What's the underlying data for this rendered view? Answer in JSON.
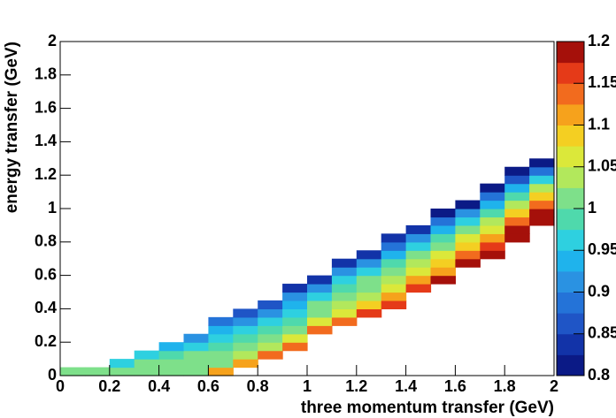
{
  "chart_data": {
    "type": "heatmap",
    "xlabel": "three momentum transfer (GeV)",
    "ylabel": "energy transfer (GeV)",
    "xlim": [
      0,
      2
    ],
    "ylim": [
      0,
      2
    ],
    "xticks": [
      0,
      0.2,
      0.4,
      0.6,
      0.8,
      1,
      1.2,
      1.4,
      1.6,
      1.8,
      2
    ],
    "yticks": [
      0,
      0.2,
      0.4,
      0.6,
      0.8,
      1,
      1.2,
      1.4,
      1.6,
      1.8,
      2
    ],
    "zlim": [
      0.8,
      1.2
    ],
    "zticks": [
      0.8,
      0.85,
      0.9,
      0.95,
      1,
      1.05,
      1.1,
      1.15,
      1.2
    ],
    "palette": [
      "#0b1a86",
      "#1233a8",
      "#1f55c6",
      "#2473d8",
      "#2a92e2",
      "#1fb3ec",
      "#2ed0e0",
      "#4fd9ac",
      "#7ee08a",
      "#b2e85c",
      "#dbe83a",
      "#f4cf22",
      "#f6a21c",
      "#f26b1e",
      "#e53a18",
      "#a5100a"
    ],
    "x_bins": [
      0,
      0.1,
      0.2,
      0.3,
      0.4,
      0.5,
      0.6,
      0.7,
      0.8,
      0.9,
      1,
      1.1,
      1.2,
      1.3,
      1.4,
      1.5,
      1.6,
      1.7,
      1.8,
      1.9,
      2
    ],
    "y_bins": [
      0,
      0.05,
      0.1,
      0.15,
      0.2,
      0.25,
      0.3,
      0.35,
      0.4,
      0.45,
      0.5,
      0.55,
      0.6,
      0.65,
      0.7,
      0.75,
      0.8,
      0.85,
      0.9,
      0.95,
      1,
      1.05,
      1.1,
      1.15,
      1.2,
      1.25,
      1.3
    ],
    "z": [
      [
        1.0,
        1.0,
        1.0,
        1.0,
        1.01,
        1.02,
        1.1,
        null,
        null,
        null,
        null,
        null,
        null,
        null,
        null,
        null,
        null,
        null,
        null,
        null
      ],
      [
        null,
        null,
        0.97,
        1.0,
        1.0,
        1.0,
        1.02,
        1.12,
        null,
        null,
        null,
        null,
        null,
        null,
        null,
        null,
        null,
        null,
        null,
        null
      ],
      [
        null,
        null,
        null,
        0.96,
        0.98,
        1.0,
        1.0,
        1.03,
        1.13,
        null,
        null,
        null,
        null,
        null,
        null,
        null,
        null,
        null,
        null,
        null
      ],
      [
        null,
        null,
        null,
        null,
        0.93,
        0.97,
        0.99,
        1.0,
        1.03,
        1.14,
        null,
        null,
        null,
        null,
        null,
        null,
        null,
        null,
        null,
        null
      ],
      [
        null,
        null,
        null,
        null,
        null,
        0.92,
        0.97,
        0.98,
        1.0,
        1.05,
        null,
        null,
        null,
        null,
        null,
        null,
        null,
        null,
        null,
        null
      ],
      [
        null,
        null,
        null,
        null,
        null,
        null,
        0.93,
        0.96,
        0.98,
        1.01,
        1.15,
        null,
        null,
        null,
        null,
        null,
        null,
        null,
        null,
        null
      ],
      [
        null,
        null,
        null,
        null,
        null,
        null,
        0.88,
        0.92,
        0.96,
        0.99,
        1.05,
        1.15,
        null,
        null,
        null,
        null,
        null,
        null,
        null,
        null
      ],
      [
        null,
        null,
        null,
        null,
        null,
        null,
        null,
        0.87,
        0.91,
        0.97,
        1.02,
        1.07,
        1.16,
        null,
        null,
        null,
        null,
        null,
        null,
        null
      ],
      [
        null,
        null,
        null,
        null,
        null,
        null,
        null,
        null,
        0.86,
        0.95,
        1.0,
        1.03,
        1.08,
        1.17,
        null,
        null,
        null,
        null,
        null,
        null
      ],
      [
        null,
        null,
        null,
        null,
        null,
        null,
        null,
        null,
        null,
        0.9,
        0.97,
        1.01,
        1.04,
        1.1,
        null,
        null,
        null,
        null,
        null,
        null
      ],
      [
        null,
        null,
        null,
        null,
        null,
        null,
        null,
        null,
        null,
        0.85,
        0.92,
        0.99,
        1.02,
        1.05,
        1.17,
        null,
        null,
        null,
        null,
        null
      ],
      [
        null,
        null,
        null,
        null,
        null,
        null,
        null,
        null,
        null,
        null,
        0.85,
        0.96,
        1.0,
        1.03,
        1.1,
        1.18,
        null,
        null,
        null,
        null
      ],
      [
        null,
        null,
        null,
        null,
        null,
        null,
        null,
        null,
        null,
        null,
        null,
        0.91,
        0.97,
        1.01,
        1.06,
        1.12,
        null,
        null,
        null,
        null
      ],
      [
        null,
        null,
        null,
        null,
        null,
        null,
        null,
        null,
        null,
        null,
        null,
        0.84,
        0.91,
        0.98,
        1.03,
        1.08,
        1.19,
        null,
        null,
        null
      ],
      [
        null,
        null,
        null,
        null,
        null,
        null,
        null,
        null,
        null,
        null,
        null,
        null,
        0.84,
        0.95,
        1.0,
        1.05,
        1.14,
        1.2,
        null,
        null
      ],
      [
        null,
        null,
        null,
        null,
        null,
        null,
        null,
        null,
        null,
        null,
        null,
        null,
        null,
        0.89,
        0.96,
        1.02,
        1.09,
        1.16,
        null,
        null
      ],
      [
        null,
        null,
        null,
        null,
        null,
        null,
        null,
        null,
        null,
        null,
        null,
        null,
        null,
        0.83,
        0.9,
        0.99,
        1.05,
        1.11,
        1.2,
        null
      ],
      [
        null,
        null,
        null,
        null,
        null,
        null,
        null,
        null,
        null,
        null,
        null,
        null,
        null,
        null,
        0.83,
        0.95,
        1.01,
        1.07,
        1.18,
        null
      ],
      [
        null,
        null,
        null,
        null,
        null,
        null,
        null,
        null,
        null,
        null,
        null,
        null,
        null,
        null,
        null,
        0.89,
        0.96,
        1.03,
        1.13,
        1.2
      ],
      [
        null,
        null,
        null,
        null,
        null,
        null,
        null,
        null,
        null,
        null,
        null,
        null,
        null,
        null,
        null,
        0.82,
        0.9,
        0.99,
        1.08,
        1.19
      ],
      [
        null,
        null,
        null,
        null,
        null,
        null,
        null,
        null,
        null,
        null,
        null,
        null,
        null,
        null,
        null,
        null,
        0.82,
        0.95,
        1.03,
        1.15
      ],
      [
        null,
        null,
        null,
        null,
        null,
        null,
        null,
        null,
        null,
        null,
        null,
        null,
        null,
        null,
        null,
        null,
        null,
        0.88,
        0.98,
        1.09
      ],
      [
        null,
        null,
        null,
        null,
        null,
        null,
        null,
        null,
        null,
        null,
        null,
        null,
        null,
        null,
        null,
        null,
        null,
        0.81,
        0.93,
        1.03
      ],
      [
        null,
        null,
        null,
        null,
        null,
        null,
        null,
        null,
        null,
        null,
        null,
        null,
        null,
        null,
        null,
        null,
        null,
        null,
        0.87,
        0.96
      ],
      [
        null,
        null,
        null,
        null,
        null,
        null,
        null,
        null,
        null,
        null,
        null,
        null,
        null,
        null,
        null,
        null,
        null,
        null,
        0.81,
        0.89
      ],
      [
        null,
        null,
        null,
        null,
        null,
        null,
        null,
        null,
        null,
        null,
        null,
        null,
        null,
        null,
        null,
        null,
        null,
        null,
        null,
        0.81
      ]
    ]
  }
}
